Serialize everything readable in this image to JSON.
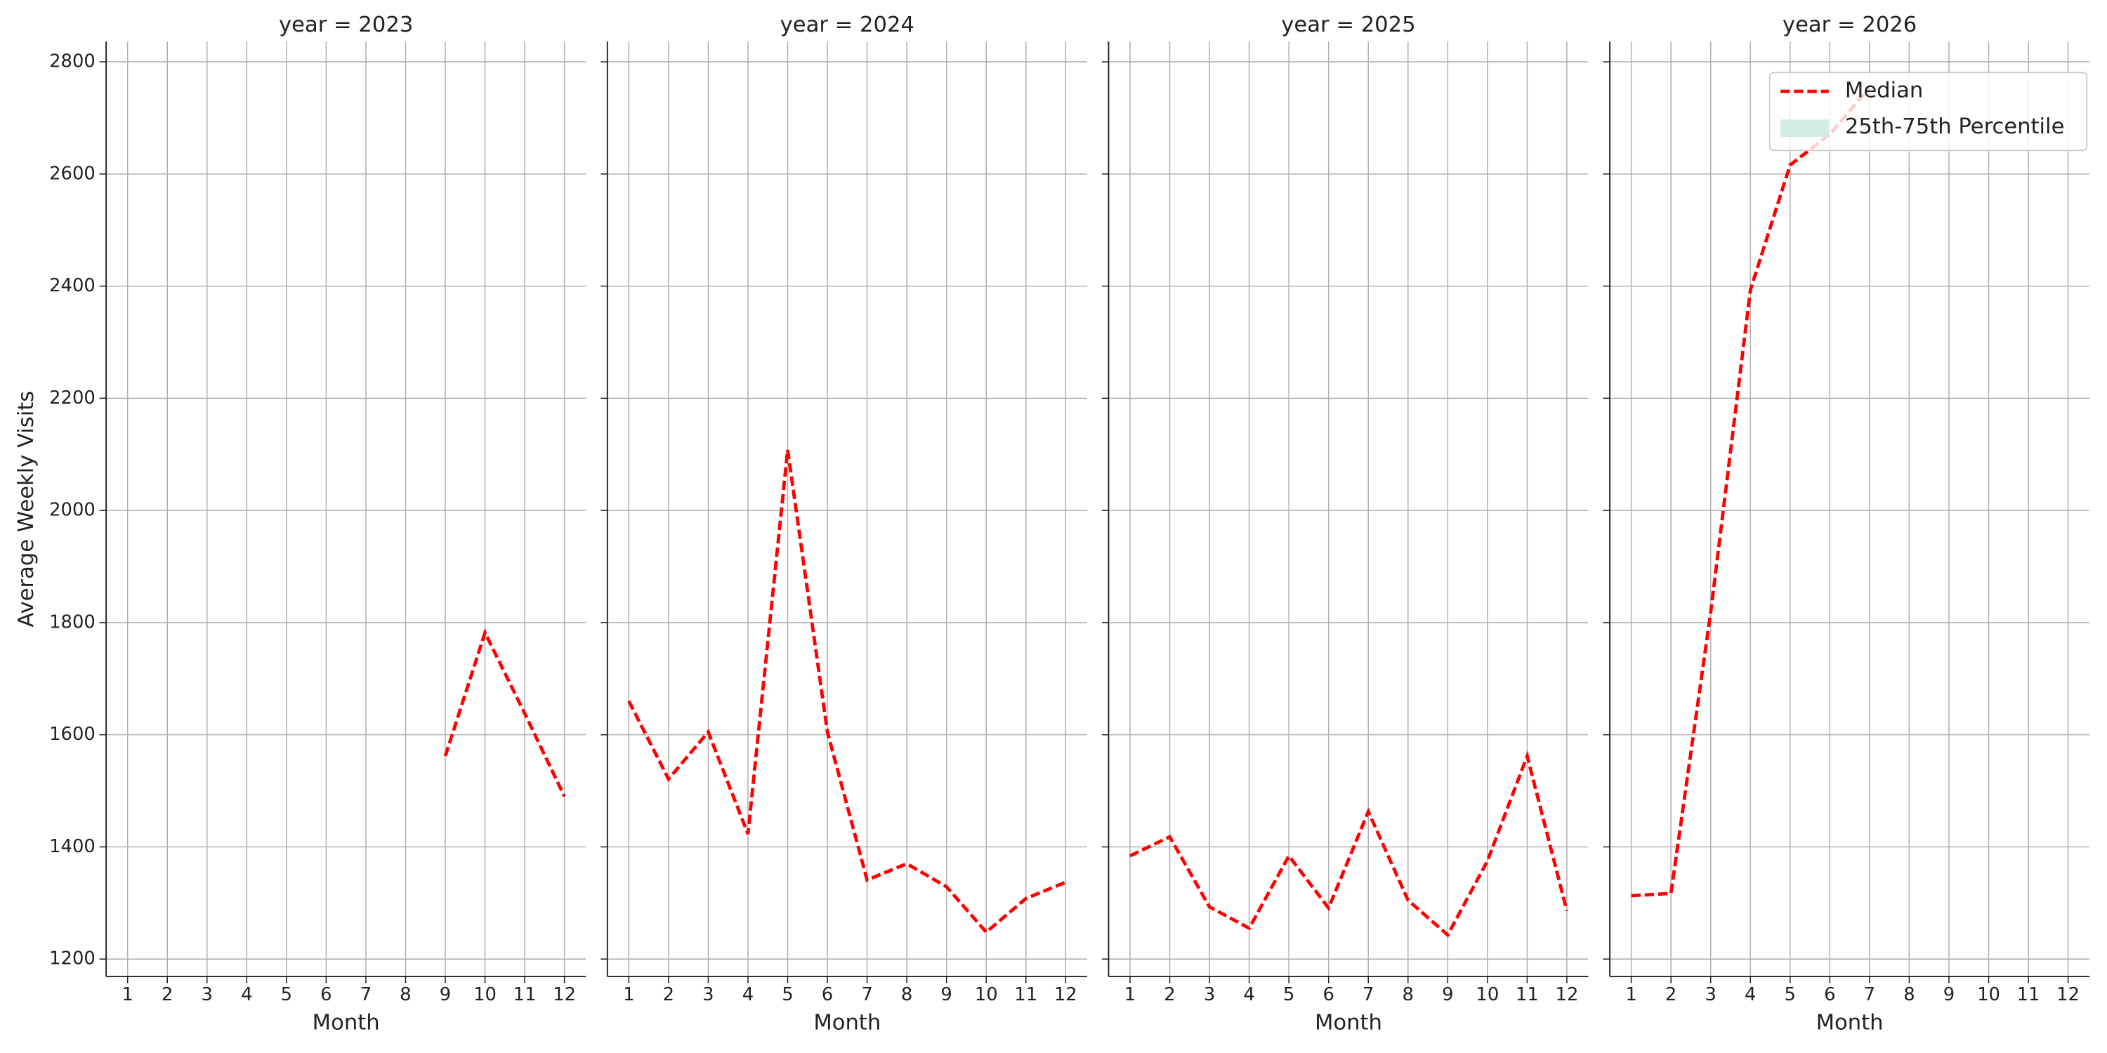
{
  "chart_data": [
    {
      "type": "line",
      "title": "year = 2023",
      "xlabel": "Month",
      "ylabel": "Average Weekly Visits",
      "x": [
        1,
        2,
        3,
        4,
        5,
        6,
        7,
        8,
        9,
        10,
        11,
        12
      ],
      "series": [
        {
          "color": "#ff0000",
          "values": [
            null,
            null,
            null,
            null,
            null,
            null,
            null,
            null,
            1562,
            1782,
            1638,
            1490
          ]
        }
      ],
      "xlim": [
        0.46,
        12.54
      ],
      "ylim": [
        1169,
        2836
      ],
      "xticks": [
        1,
        2,
        3,
        4,
        5,
        6,
        7,
        8,
        9,
        10,
        11,
        12
      ],
      "yticks": [
        1200,
        1400,
        1600,
        1800,
        2000,
        2200,
        2400,
        2600,
        2800
      ],
      "grid": true
    },
    {
      "type": "line",
      "title": "year = 2024",
      "xlabel": "Month",
      "x": [
        1,
        2,
        3,
        4,
        5,
        6,
        7,
        8,
        9,
        10,
        11,
        12
      ],
      "series": [
        {
          "color": "#ff0000",
          "values": [
            1660,
            1521,
            1605,
            1423,
            2108,
            1605,
            1341,
            1370,
            1329,
            1248,
            1308,
            1337
          ]
        }
      ],
      "xlim": [
        0.46,
        12.54
      ],
      "ylim": [
        1169,
        2836
      ],
      "xticks": [
        1,
        2,
        3,
        4,
        5,
        6,
        7,
        8,
        9,
        10,
        11,
        12
      ],
      "yticks": [
        1200,
        1400,
        1600,
        1800,
        2000,
        2200,
        2400,
        2600,
        2800
      ],
      "grid": true
    },
    {
      "type": "line",
      "title": "year = 2025",
      "xlabel": "Month",
      "x": [
        1,
        2,
        3,
        4,
        5,
        6,
        7,
        8,
        9,
        10,
        11,
        12
      ],
      "series": [
        {
          "color": "#ff0000",
          "values": [
            1384,
            1418,
            1293,
            1255,
            1384,
            1291,
            1463,
            1305,
            1243,
            1375,
            1562,
            1286
          ]
        }
      ],
      "xlim": [
        0.46,
        12.54
      ],
      "ylim": [
        1169,
        2836
      ],
      "xticks": [
        1,
        2,
        3,
        4,
        5,
        6,
        7,
        8,
        9,
        10,
        11,
        12
      ],
      "yticks": [
        1200,
        1400,
        1600,
        1800,
        2000,
        2200,
        2400,
        2600,
        2800
      ],
      "grid": true
    },
    {
      "type": "line",
      "title": "year = 2026",
      "xlabel": "Month",
      "x": [
        1,
        2,
        3,
        4,
        5,
        6,
        7,
        8,
        9,
        10,
        11,
        12
      ],
      "series": [
        {
          "color": "#ff0000",
          "values": [
            1313,
            1317,
            1818,
            2393,
            2616,
            2671,
            2754,
            null,
            null,
            null,
            null,
            null
          ]
        }
      ],
      "xlim": [
        0.46,
        12.54
      ],
      "ylim": [
        1169,
        2836
      ],
      "xticks": [
        1,
        2,
        3,
        4,
        5,
        6,
        7,
        8,
        9,
        10,
        11,
        12
      ],
      "yticks": [
        1200,
        1400,
        1600,
        1800,
        2000,
        2200,
        2400,
        2600,
        2800
      ],
      "grid": true,
      "legend": {
        "loc": "upper right",
        "entries": [
          {
            "label": "Median",
            "color": "#ff0000",
            "kind": "dashed-line"
          },
          {
            "label": "25th-75th Percentile",
            "color": "#d3ede4",
            "kind": "patch"
          }
        ]
      }
    }
  ]
}
